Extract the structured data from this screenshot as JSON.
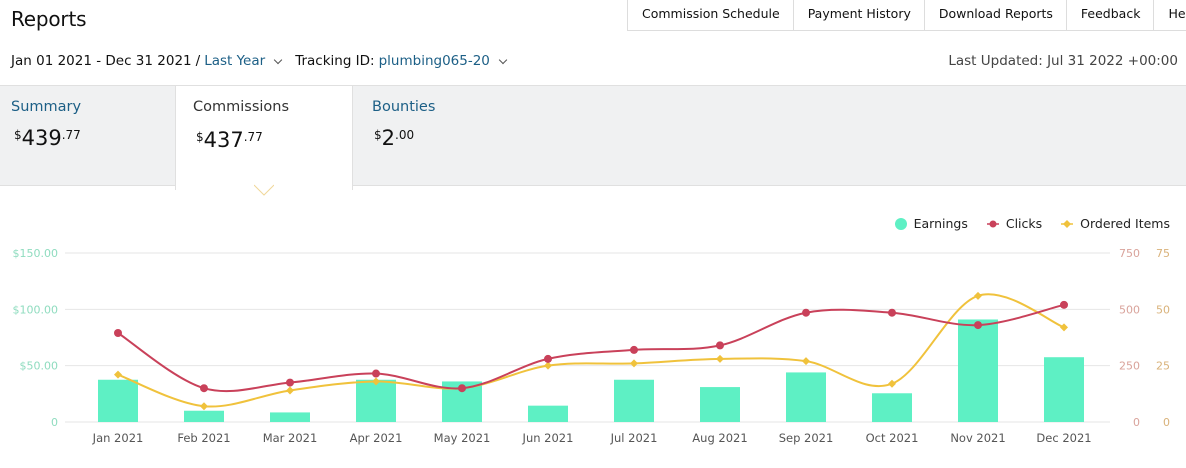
{
  "header": {
    "title": "Reports"
  },
  "nav": [
    {
      "label": "Commission Schedule"
    },
    {
      "label": "Payment History"
    },
    {
      "label": "Download Reports"
    },
    {
      "label": "Feedback"
    },
    {
      "label": "Help"
    }
  ],
  "filters": {
    "date_range": "Jan 01 2021 - Dec 31 2021",
    "separator": "/",
    "preset": "Last Year",
    "tracking_label": "Tracking ID:",
    "tracking_id": "plumbing065-20"
  },
  "last_updated": "Last Updated: Jul 31 2022 +00:00",
  "tabs": {
    "summary": {
      "label": "Summary",
      "currency": "$",
      "whole": "439",
      "cents": ".77"
    },
    "commissions": {
      "label": "Commissions",
      "currency": "$",
      "whole": "437",
      "cents": ".77"
    },
    "bounties": {
      "label": "Bounties",
      "currency": "$",
      "whole": "2",
      "cents": ".00"
    }
  },
  "legend": [
    {
      "label": "Earnings",
      "color": "#5ef0c4",
      "marker": "circle"
    },
    {
      "label": "Clicks",
      "color": "#c9415a",
      "marker": "circle"
    },
    {
      "label": "Ordered Items",
      "color": "#f0c23c",
      "marker": "diamond"
    }
  ],
  "chart_data": {
    "type": "bar",
    "categories": [
      "Jan 2021",
      "Feb 2021",
      "Mar 2021",
      "Apr 2021",
      "May 2021",
      "Jun 2021",
      "Jul 2021",
      "Aug 2021",
      "Sep 2021",
      "Oct 2021",
      "Nov 2021",
      "Dec 2021"
    ],
    "series": [
      {
        "name": "Earnings",
        "type": "bar",
        "axis": "left",
        "color": "#5ef0c4",
        "values": [
          37.5,
          10,
          8.5,
          37.5,
          36,
          14.5,
          37.5,
          31,
          44,
          25.5,
          91,
          57.5
        ]
      },
      {
        "name": "Clicks",
        "type": "line",
        "axis": "right1",
        "color": "#c9415a",
        "values": [
          395,
          150,
          175,
          215,
          150,
          280,
          320,
          340,
          485,
          485,
          430,
          520
        ]
      },
      {
        "name": "Ordered Items",
        "type": "line",
        "axis": "right2",
        "color": "#f0c23c",
        "values": [
          21,
          7,
          14,
          18,
          15,
          25,
          26,
          28,
          27,
          17,
          56,
          42
        ]
      }
    ],
    "axes": {
      "left": {
        "ticks": [
          "0",
          "$50.00",
          "$100.00",
          "$150.00"
        ],
        "range": [
          0,
          150
        ]
      },
      "right1": {
        "ticks": [
          "0",
          "250",
          "500",
          "750"
        ],
        "range": [
          0,
          750
        ]
      },
      "right2": {
        "ticks": [
          "0",
          "25",
          "50",
          "75"
        ],
        "range": [
          0,
          75
        ]
      }
    },
    "grid": true,
    "legend_position": "top-right"
  }
}
